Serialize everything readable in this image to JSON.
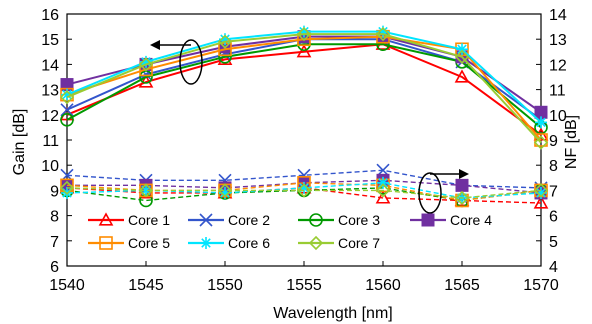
{
  "chart_data": {
    "type": "line",
    "title": "",
    "xlabel": "Wavelength [nm]",
    "ylabel": "Gain [dB]",
    "y2label": "NF [dB]",
    "x": [
      1540,
      1545,
      1550,
      1555,
      1560,
      1565,
      1570
    ],
    "xlim": [
      1540,
      1570
    ],
    "ylim": [
      6,
      16
    ],
    "y2lim": [
      4,
      14
    ],
    "x_ticks": [
      "1540",
      "1545",
      "1550",
      "1555",
      "1560",
      "1565",
      "1570"
    ],
    "y_ticks": [
      "6",
      "7",
      "8",
      "9",
      "10",
      "11",
      "12",
      "13",
      "14",
      "15",
      "16"
    ],
    "y2_ticks": [
      "4",
      "5",
      "6",
      "7",
      "8",
      "9",
      "10",
      "11",
      "12",
      "13",
      "14"
    ],
    "grid": false,
    "legend_position": "bottom-left inside",
    "series": [
      {
        "name": "Core 1",
        "color": "#ff0000",
        "marker": "triangle",
        "gain": [
          12.0,
          13.3,
          14.2,
          14.5,
          14.8,
          13.5,
          11.2
        ],
        "nf": [
          7.1,
          6.9,
          6.9,
          7.1,
          6.7,
          6.6,
          6.5
        ]
      },
      {
        "name": "Core 2",
        "color": "#3355cc",
        "marker": "x",
        "gain": [
          12.2,
          13.6,
          14.4,
          15.0,
          15.0,
          14.1,
          11.8
        ],
        "nf": [
          7.6,
          7.4,
          7.4,
          7.6,
          7.8,
          7.2,
          7.1
        ]
      },
      {
        "name": "Core 3",
        "color": "#009900",
        "marker": "circle",
        "gain": [
          11.8,
          13.5,
          14.3,
          14.8,
          14.8,
          14.1,
          11.5
        ],
        "nf": [
          7.0,
          6.6,
          6.9,
          7.0,
          7.1,
          6.6,
          7.0
        ]
      },
      {
        "name": "Core 4",
        "color": "#7030a0",
        "marker": "square-filled",
        "gain": [
          13.2,
          14.0,
          14.7,
          15.1,
          15.1,
          14.3,
          12.1
        ],
        "nf": [
          7.2,
          7.2,
          7.1,
          7.3,
          7.4,
          7.2,
          6.9
        ]
      },
      {
        "name": "Core 5",
        "color": "#ff8c00",
        "marker": "square",
        "gain": [
          12.8,
          13.8,
          14.6,
          15.0,
          15.1,
          14.6,
          11.0
        ],
        "nf": [
          7.2,
          7.0,
          7.0,
          7.3,
          7.2,
          6.6,
          7.0
        ]
      },
      {
        "name": "Core 6",
        "color": "#00e5ff",
        "marker": "asterisk",
        "gain": [
          12.8,
          14.1,
          15.0,
          15.3,
          15.3,
          14.6,
          11.7
        ],
        "nf": [
          6.9,
          7.0,
          6.9,
          7.1,
          7.3,
          6.7,
          6.9
        ]
      },
      {
        "name": "Core 7",
        "color": "#99cc33",
        "marker": "diamond",
        "gain": [
          12.7,
          14.0,
          14.9,
          15.2,
          15.2,
          14.3,
          10.9
        ],
        "nf": [
          7.1,
          7.0,
          7.0,
          7.0,
          7.0,
          6.7,
          7.0
        ]
      }
    ],
    "annotations": [
      {
        "type": "arrow",
        "points_to": "left axis (Gain)",
        "group": "upper curves"
      },
      {
        "type": "arrow",
        "points_to": "right axis (NF)",
        "group": "lower curves"
      }
    ]
  }
}
